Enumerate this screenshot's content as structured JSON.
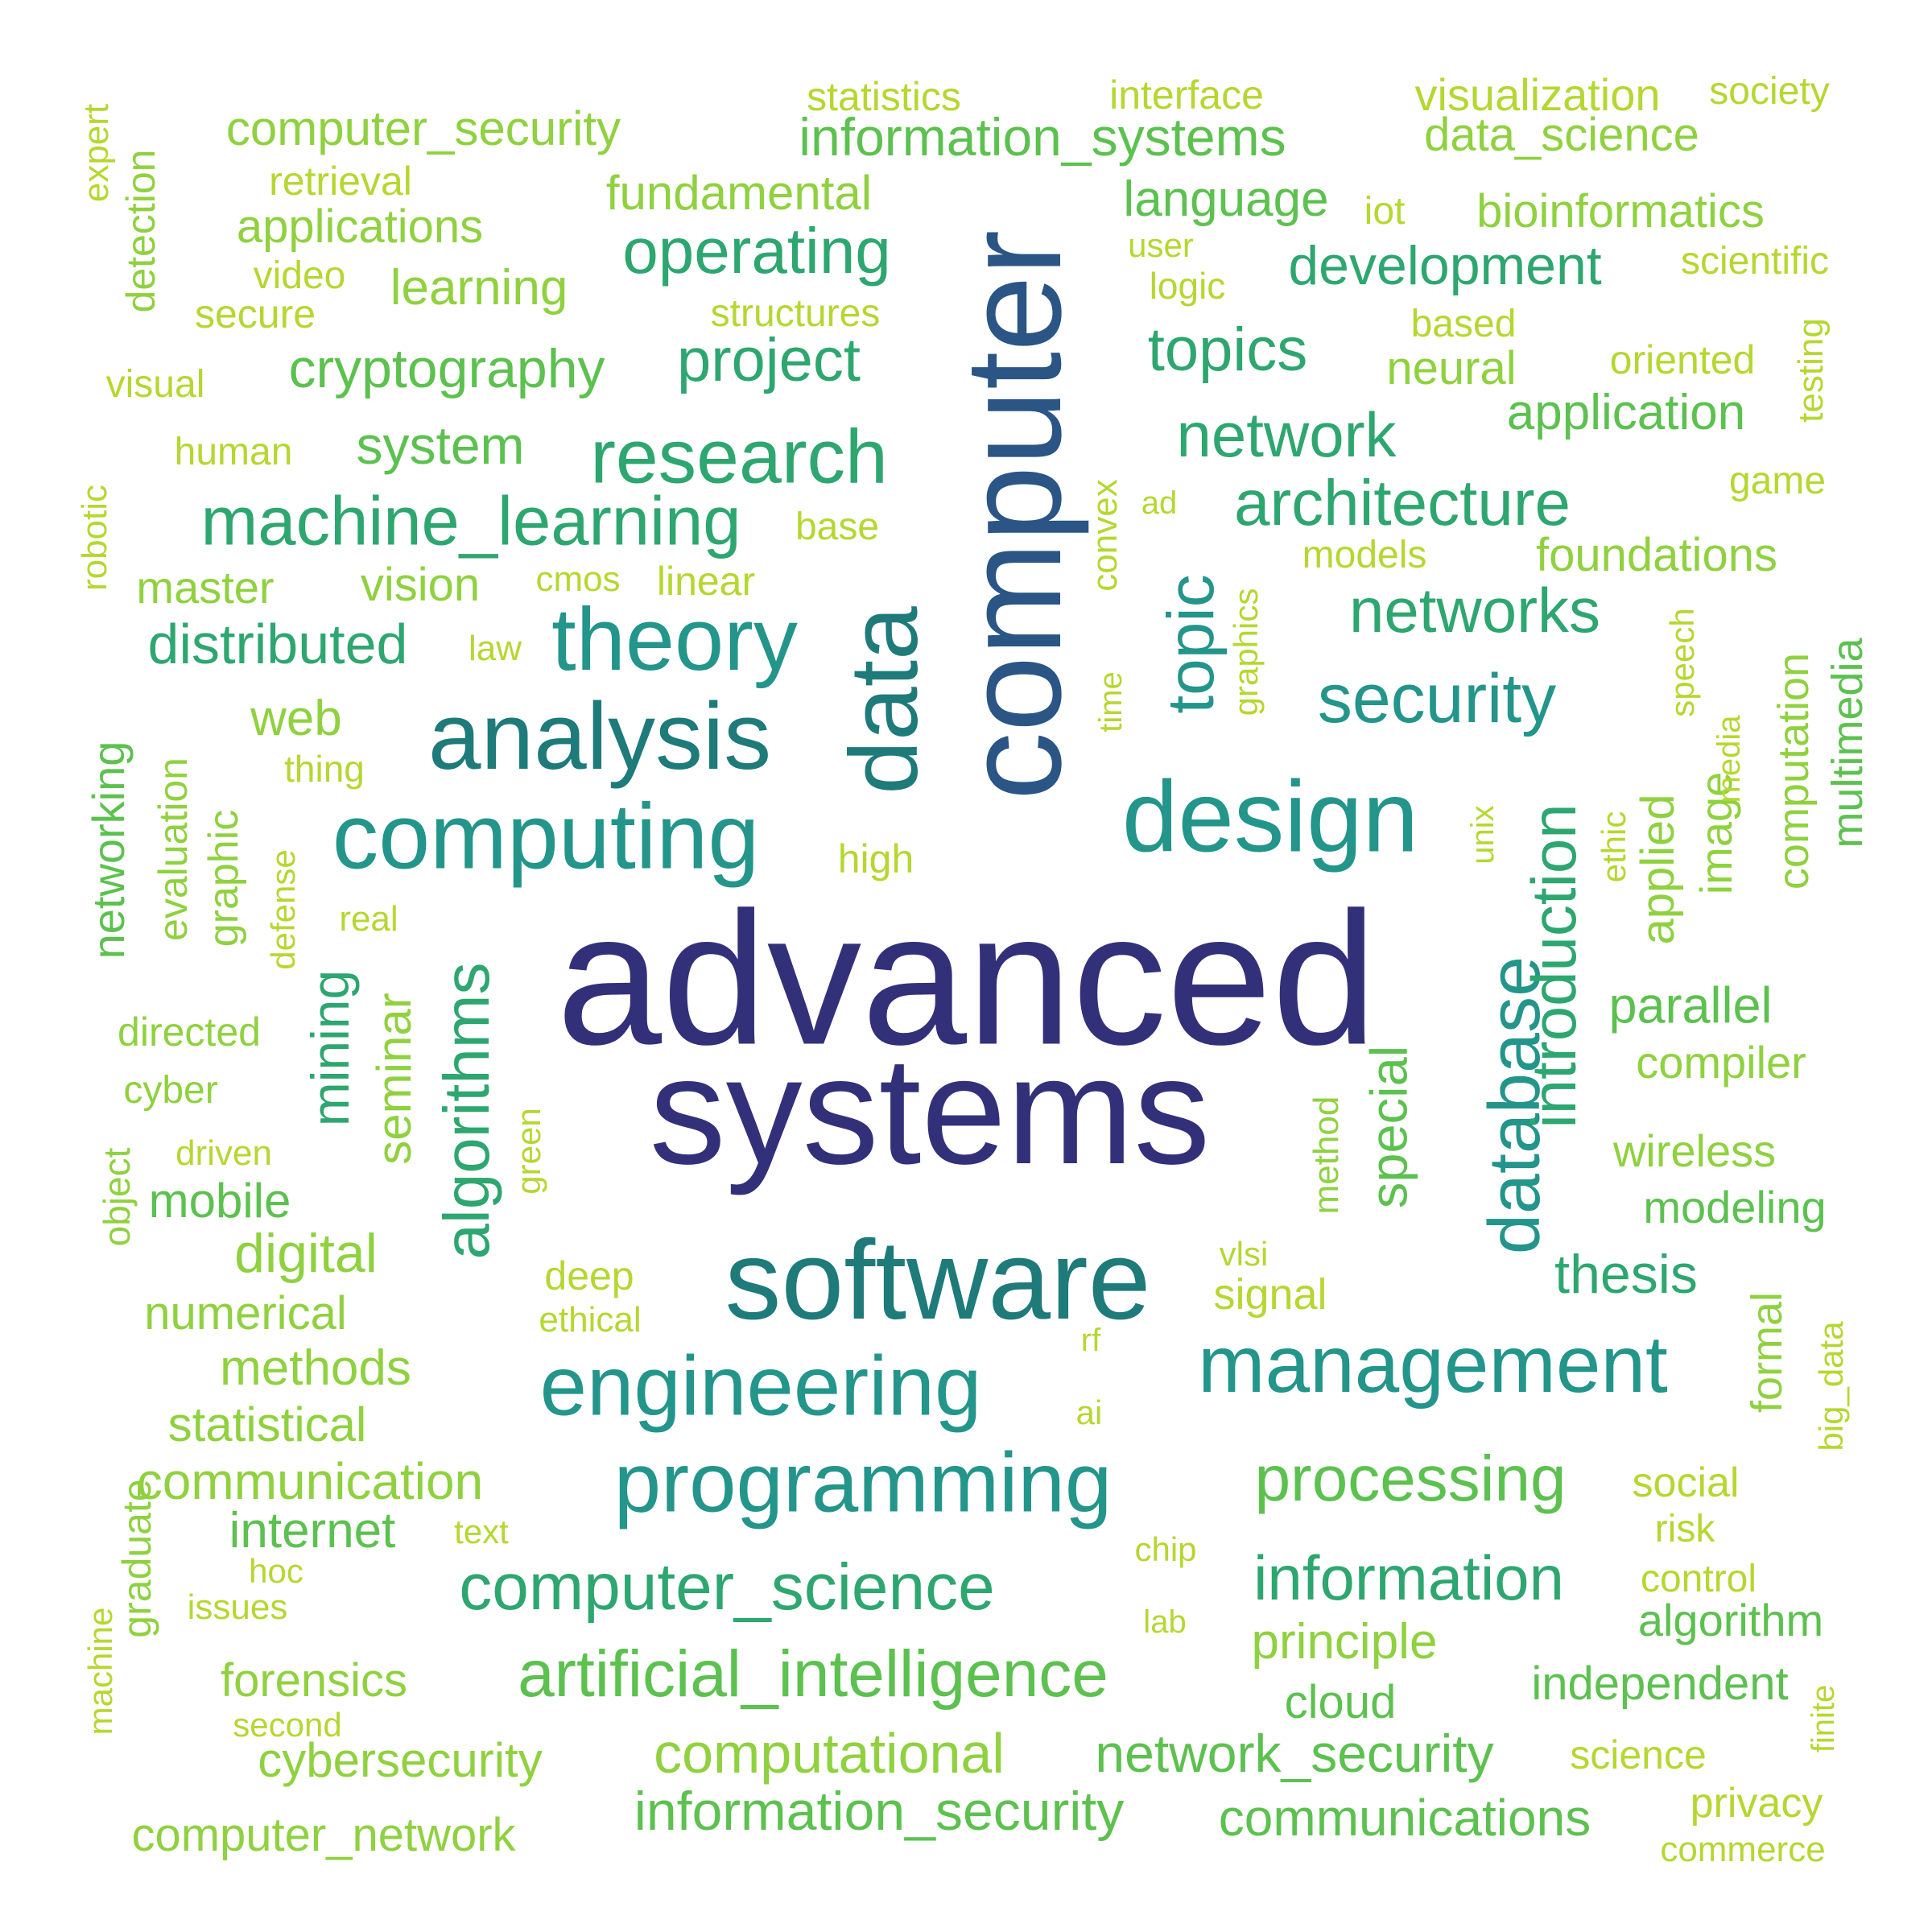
{
  "word_cloud": {
    "palette": {
      "darkest": "#33307a",
      "navy": "#2a5585",
      "teal": "#1f7a7a",
      "teal_green": "#23958a",
      "green": "#2ea670",
      "light_green": "#5cc14f",
      "lime": "#8fd13f",
      "yellow_green": "#b5d731"
    },
    "words": [
      {
        "text": "advanced",
        "color": "#33307a",
        "rotated": false
      },
      {
        "text": "systems",
        "color": "#33307a",
        "rotated": false
      },
      {
        "text": "computer",
        "color": "#2a5585",
        "rotated": true
      },
      {
        "text": "data",
        "color": "#1f7a7a",
        "rotated": true
      },
      {
        "text": "software",
        "color": "#1f7a7a",
        "rotated": false
      },
      {
        "text": "design",
        "color": "#23958a",
        "rotated": false
      },
      {
        "text": "analysis",
        "color": "#1f7a7a",
        "rotated": false
      },
      {
        "text": "computing",
        "color": "#23958a",
        "rotated": false
      },
      {
        "text": "theory",
        "color": "#23958a",
        "rotated": false
      },
      {
        "text": "research",
        "color": "#2ea670",
        "rotated": false
      },
      {
        "text": "engineering",
        "color": "#23958a",
        "rotated": false
      },
      {
        "text": "programming",
        "color": "#23958a",
        "rotated": false
      },
      {
        "text": "management",
        "color": "#23958a",
        "rotated": false
      },
      {
        "text": "database",
        "color": "#23958a",
        "rotated": true
      },
      {
        "text": "topic",
        "color": "#23958a",
        "rotated": true
      },
      {
        "text": "security",
        "color": "#23958a",
        "rotated": false
      },
      {
        "text": "machine_learning",
        "color": "#2ea670",
        "rotated": false
      },
      {
        "text": "algorithms",
        "color": "#2ea670",
        "rotated": true
      },
      {
        "text": "introduction",
        "color": "#2ea670",
        "rotated": true
      },
      {
        "text": "computer_science",
        "color": "#2ea670",
        "rotated": false
      },
      {
        "text": "artificial_intelligence",
        "color": "#5cc14f",
        "rotated": false
      },
      {
        "text": "architecture",
        "color": "#2ea670",
        "rotated": false
      },
      {
        "text": "networks",
        "color": "#2ea670",
        "rotated": false
      },
      {
        "text": "network",
        "color": "#2ea670",
        "rotated": false
      },
      {
        "text": "topics",
        "color": "#2ea670",
        "rotated": false
      },
      {
        "text": "processing",
        "color": "#5cc14f",
        "rotated": false
      },
      {
        "text": "information",
        "color": "#2ea670",
        "rotated": false
      },
      {
        "text": "special",
        "color": "#5cc14f",
        "rotated": true
      },
      {
        "text": "mining",
        "color": "#2ea670",
        "rotated": true
      },
      {
        "text": "operating",
        "color": "#2ea670",
        "rotated": false
      },
      {
        "text": "project",
        "color": "#2ea670",
        "rotated": false
      },
      {
        "text": "distributed",
        "color": "#2ea670",
        "rotated": false
      },
      {
        "text": "development",
        "color": "#2ea670",
        "rotated": false
      },
      {
        "text": "computational",
        "color": "#8fd13f",
        "rotated": false
      },
      {
        "text": "information_security",
        "color": "#5cc14f",
        "rotated": false
      },
      {
        "text": "network_security",
        "color": "#5cc14f",
        "rotated": false
      },
      {
        "text": "communications",
        "color": "#5cc14f",
        "rotated": false
      },
      {
        "text": "thesis",
        "color": "#2ea670",
        "rotated": false
      },
      {
        "text": "parallel",
        "color": "#5cc14f",
        "rotated": false
      },
      {
        "text": "cryptography",
        "color": "#5cc14f",
        "rotated": false
      },
      {
        "text": "system",
        "color": "#5cc14f",
        "rotated": false
      },
      {
        "text": "information_systems",
        "color": "#5cc14f",
        "rotated": false
      },
      {
        "text": "computer_security",
        "color": "#8fd13f",
        "rotated": false
      },
      {
        "text": "fundamental",
        "color": "#8fd13f",
        "rotated": false
      },
      {
        "text": "language",
        "color": "#5cc14f",
        "rotated": false
      },
      {
        "text": "application",
        "color": "#5cc14f",
        "rotated": false
      },
      {
        "text": "foundations",
        "color": "#8fd13f",
        "rotated": false
      },
      {
        "text": "applications",
        "color": "#8fd13f",
        "rotated": false
      },
      {
        "text": "learning",
        "color": "#8fd13f",
        "rotated": false
      },
      {
        "text": "web",
        "color": "#8fd13f",
        "rotated": false
      },
      {
        "text": "digital",
        "color": "#8fd13f",
        "rotated": false
      },
      {
        "text": "mobile",
        "color": "#5cc14f",
        "rotated": false
      },
      {
        "text": "vision",
        "color": "#8fd13f",
        "rotated": false
      },
      {
        "text": "master",
        "color": "#8fd13f",
        "rotated": false
      },
      {
        "text": "bioinformatics",
        "color": "#8fd13f",
        "rotated": false
      },
      {
        "text": "data_science",
        "color": "#8fd13f",
        "rotated": false
      },
      {
        "text": "visualization",
        "color": "#b5d731",
        "rotated": false
      },
      {
        "text": "neural",
        "color": "#8fd13f",
        "rotated": false
      },
      {
        "text": "modeling",
        "color": "#5cc14f",
        "rotated": false
      },
      {
        "text": "wireless",
        "color": "#8fd13f",
        "rotated": false
      },
      {
        "text": "compiler",
        "color": "#8fd13f",
        "rotated": false
      },
      {
        "text": "communication",
        "color": "#8fd13f",
        "rotated": false
      },
      {
        "text": "internet",
        "color": "#5cc14f",
        "rotated": false
      },
      {
        "text": "methods",
        "color": "#8fd13f",
        "rotated": false
      },
      {
        "text": "statistical",
        "color": "#8fd13f",
        "rotated": false
      },
      {
        "text": "numerical",
        "color": "#8fd13f",
        "rotated": false
      },
      {
        "text": "principle",
        "color": "#8fd13f",
        "rotated": false
      },
      {
        "text": "independent",
        "color": "#5cc14f",
        "rotated": false
      },
      {
        "text": "cloud",
        "color": "#5cc14f",
        "rotated": false
      },
      {
        "text": "algorithm",
        "color": "#5cc14f",
        "rotated": false
      },
      {
        "text": "cybersecurity",
        "color": "#8fd13f",
        "rotated": false
      },
      {
        "text": "computer_network",
        "color": "#8fd13f",
        "rotated": false
      },
      {
        "text": "forensics",
        "color": "#8fd13f",
        "rotated": false
      },
      {
        "text": "seminar",
        "color": "#8fd13f",
        "rotated": true
      },
      {
        "text": "applied",
        "color": "#8fd13f",
        "rotated": true
      },
      {
        "text": "computation",
        "color": "#8fd13f",
        "rotated": true
      },
      {
        "text": "multimedia",
        "color": "#5cc14f",
        "rotated": true
      },
      {
        "text": "image",
        "color": "#8fd13f",
        "rotated": true
      },
      {
        "text": "networking",
        "color": "#5cc14f",
        "rotated": true
      },
      {
        "text": "graphic",
        "color": "#8fd13f",
        "rotated": true
      },
      {
        "text": "evaluation",
        "color": "#8fd13f",
        "rotated": true
      },
      {
        "text": "formal",
        "color": "#8fd13f",
        "rotated": true
      },
      {
        "text": "method",
        "color": "#8fd13f",
        "rotated": true
      },
      {
        "text": "graduate",
        "color": "#8fd13f",
        "rotated": true
      },
      {
        "text": "object",
        "color": "#8fd13f",
        "rotated": true
      },
      {
        "text": "detection",
        "color": "#8fd13f",
        "rotated": true
      },
      {
        "text": "expert",
        "color": "#b5d731",
        "rotated": true
      },
      {
        "text": "robotic",
        "color": "#b5d731",
        "rotated": true
      },
      {
        "text": "testing",
        "color": "#b5d731",
        "rotated": true
      },
      {
        "text": "big_data",
        "color": "#b5d731",
        "rotated": true
      },
      {
        "text": "machine",
        "color": "#b5d731",
        "rotated": true
      },
      {
        "text": "finite",
        "color": "#b5d731",
        "rotated": true
      },
      {
        "text": "convex",
        "color": "#b5d731",
        "rotated": true
      },
      {
        "text": "time",
        "color": "#b5d731",
        "rotated": true
      },
      {
        "text": "graphics",
        "color": "#b5d731",
        "rotated": true
      },
      {
        "text": "speech",
        "color": "#b5d731",
        "rotated": true
      },
      {
        "text": "media",
        "color": "#b5d731",
        "rotated": true
      },
      {
        "text": "ethic",
        "color": "#b5d731",
        "rotated": true
      },
      {
        "text": "unix",
        "color": "#b5d731",
        "rotated": true
      },
      {
        "text": "defense",
        "color": "#b5d731",
        "rotated": true
      },
      {
        "text": "green",
        "color": "#b5d731",
        "rotated": true
      },
      {
        "text": "statistics",
        "color": "#b5d731",
        "rotated": false
      },
      {
        "text": "interface",
        "color": "#b5d731",
        "rotated": false
      },
      {
        "text": "society",
        "color": "#b5d731",
        "rotated": false
      },
      {
        "text": "scientific",
        "color": "#b5d731",
        "rotated": false
      },
      {
        "text": "based",
        "color": "#b5d731",
        "rotated": false
      },
      {
        "text": "oriented",
        "color": "#b5d731",
        "rotated": false
      },
      {
        "text": "game",
        "color": "#b5d731",
        "rotated": false
      },
      {
        "text": "retrieval",
        "color": "#b5d731",
        "rotated": false
      },
      {
        "text": "video",
        "color": "#b5d731",
        "rotated": false
      },
      {
        "text": "secure",
        "color": "#b5d731",
        "rotated": false
      },
      {
        "text": "structures",
        "color": "#b5d731",
        "rotated": false
      },
      {
        "text": "visual",
        "color": "#b5d731",
        "rotated": false
      },
      {
        "text": "human",
        "color": "#b5d731",
        "rotated": false
      },
      {
        "text": "base",
        "color": "#b5d731",
        "rotated": false
      },
      {
        "text": "cmos",
        "color": "#b5d731",
        "rotated": false
      },
      {
        "text": "linear",
        "color": "#b5d731",
        "rotated": false
      },
      {
        "text": "law",
        "color": "#b5d731",
        "rotated": false
      },
      {
        "text": "thing",
        "color": "#b5d731",
        "rotated": false
      },
      {
        "text": "high",
        "color": "#b5d731",
        "rotated": false
      },
      {
        "text": "real",
        "color": "#b5d731",
        "rotated": false
      },
      {
        "text": "directed",
        "color": "#8fd13f",
        "rotated": false
      },
      {
        "text": "cyber",
        "color": "#8fd13f",
        "rotated": false
      },
      {
        "text": "driven",
        "color": "#b5d731",
        "rotated": false
      },
      {
        "text": "deep",
        "color": "#b5d731",
        "rotated": false
      },
      {
        "text": "ethical",
        "color": "#b5d731",
        "rotated": false
      },
      {
        "text": "iot",
        "color": "#b5d731",
        "rotated": false
      },
      {
        "text": "user",
        "color": "#b5d731",
        "rotated": false
      },
      {
        "text": "logic",
        "color": "#b5d731",
        "rotated": false
      },
      {
        "text": "ad",
        "color": "#b5d731",
        "rotated": false
      },
      {
        "text": "models",
        "color": "#b5d731",
        "rotated": false
      },
      {
        "text": "vlsi",
        "color": "#b5d731",
        "rotated": false
      },
      {
        "text": "signal",
        "color": "#b5d731",
        "rotated": false
      },
      {
        "text": "rf",
        "color": "#b5d731",
        "rotated": false
      },
      {
        "text": "ai",
        "color": "#b5d731",
        "rotated": false
      },
      {
        "text": "chip",
        "color": "#b5d731",
        "rotated": false
      },
      {
        "text": "lab",
        "color": "#b5d731",
        "rotated": false
      },
      {
        "text": "text",
        "color": "#b5d731",
        "rotated": false
      },
      {
        "text": "hoc",
        "color": "#b5d731",
        "rotated": false
      },
      {
        "text": "issues",
        "color": "#b5d731",
        "rotated": false
      },
      {
        "text": "second",
        "color": "#b5d731",
        "rotated": false
      },
      {
        "text": "social",
        "color": "#b5d731",
        "rotated": false
      },
      {
        "text": "risk",
        "color": "#b5d731",
        "rotated": false
      },
      {
        "text": "control",
        "color": "#b5d731",
        "rotated": false
      },
      {
        "text": "science",
        "color": "#b5d731",
        "rotated": false
      },
      {
        "text": "privacy",
        "color": "#b5d731",
        "rotated": false
      },
      {
        "text": "commerce",
        "color": "#b5d731",
        "rotated": false
      }
    ]
  }
}
